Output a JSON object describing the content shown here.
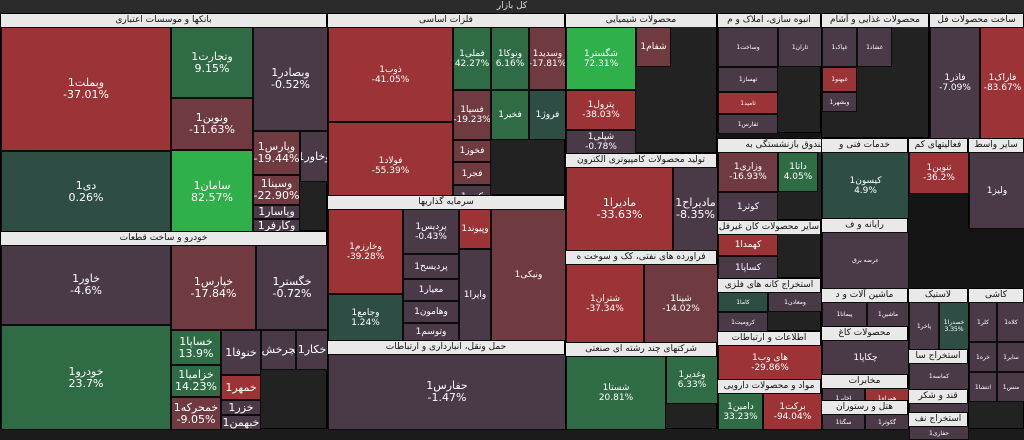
{
  "title": "کل بازار",
  "colors": {
    "r3": "#9b3337",
    "r2": "#6f3a40",
    "r1": "#4a3a48",
    "g1": "#2e4d45",
    "g2": "#2f6b45",
    "g3": "#2fb04a"
  },
  "sections": [
    {
      "name": "بانکها و موسسات اعتباری",
      "cells": [
        {
          "name": "وبملت1",
          "pct": "-37.01%",
          "c": "r3"
        },
        {
          "name": "دی1",
          "pct": "0.26%",
          "c": "g1"
        },
        {
          "name": "وتجارت1",
          "pct": "9.15%",
          "c": "g2"
        },
        {
          "name": "ونوین1",
          "pct": "-11.63%",
          "c": "r2"
        },
        {
          "name": "سامان1",
          "pct": "82.57%",
          "c": "g3"
        },
        {
          "name": "وبصادر1",
          "pct": "-0.52%",
          "c": "r1"
        },
        {
          "name": "وپارس1",
          "pct": "-19.44%",
          "c": "r2"
        },
        {
          "name": "وسینا1",
          "pct": "-22.90%",
          "c": "r2"
        },
        {
          "name": "وپاسار1",
          "pct": "",
          "c": "r1"
        },
        {
          "name": "وکارفر1",
          "pct": "",
          "c": "r1"
        },
        {
          "name": "وخاور1",
          "pct": "",
          "c": "r1"
        }
      ]
    },
    {
      "name": "خودرو و ساخت قطعات",
      "cells": [
        {
          "name": "خاور1",
          "pct": "-4.6%",
          "c": "r1"
        },
        {
          "name": "خودرو1",
          "pct": "23.7%",
          "c": "g2"
        },
        {
          "name": "خپارس1",
          "pct": "-17.84%",
          "c": "r2"
        },
        {
          "name": "خگستر1",
          "pct": "-0.72%",
          "c": "r1"
        },
        {
          "name": "خساپا1",
          "pct": "13.9%",
          "c": "g2"
        },
        {
          "name": "خزامیا1",
          "pct": "14.23%",
          "c": "g2"
        },
        {
          "name": "خمحرکه1",
          "pct": "-9.05%",
          "c": "r2"
        },
        {
          "name": "خنوفا1",
          "pct": "",
          "c": "r1"
        },
        {
          "name": "خمهر1",
          "pct": "",
          "c": "r3"
        },
        {
          "name": "خزر1",
          "pct": "",
          "c": "r1"
        },
        {
          "name": "خبهمن1",
          "pct": "",
          "c": "r1"
        },
        {
          "name": "خکار1",
          "pct": "",
          "c": "r1"
        },
        {
          "name": "خچرخش1",
          "pct": "",
          "c": "r1"
        }
      ]
    },
    {
      "name": "فلزات اساسی",
      "cells": [
        {
          "name": "ذوب1",
          "pct": "-41.05%",
          "c": "r3"
        },
        {
          "name": "فولاد1",
          "pct": "-55.39%",
          "c": "r3"
        },
        {
          "name": "فملی1",
          "pct": "42.27%",
          "c": "g2"
        },
        {
          "name": "ونوکا1",
          "pct": "6.16%",
          "c": "g2"
        },
        {
          "name": "وسدید1",
          "pct": "-17.81%",
          "c": "r2"
        },
        {
          "name": "فسپا1",
          "pct": "-19.23%",
          "c": "r2"
        },
        {
          "name": "فخوز1",
          "pct": "",
          "c": "r2"
        },
        {
          "name": "فجر1",
          "pct": "",
          "c": "r2"
        },
        {
          "name": "کویر1",
          "pct": "",
          "c": "r1"
        },
        {
          "name": "فروژ1",
          "pct": "",
          "c": "g1"
        },
        {
          "name": "فخیر1",
          "pct": "",
          "c": "g2"
        }
      ]
    },
    {
      "name": "سرمایه گذاریها",
      "cells": [
        {
          "name": "وخارزم1",
          "pct": "-39.28%",
          "c": "r3"
        },
        {
          "name": "وجامع1",
          "pct": "1.24%",
          "c": "g1"
        },
        {
          "name": "پردیس1",
          "pct": "-0.43%",
          "c": "r1"
        },
        {
          "name": "پردیسح1",
          "pct": "",
          "c": "r1"
        },
        {
          "name": "معیار1",
          "pct": "",
          "c": "r1"
        },
        {
          "name": "وهامون1",
          "pct": "",
          "c": "r1"
        },
        {
          "name": "وتوسم1",
          "pct": "",
          "c": "r1"
        },
        {
          "name": "وپیوند1",
          "pct": "",
          "c": "r3"
        },
        {
          "name": "واپرا1",
          "pct": "",
          "c": "r1"
        },
        {
          "name": "ونیکی1",
          "pct": "",
          "c": "r2"
        }
      ]
    },
    {
      "name": "حمل ونقل، انبارداری و ارتباطات",
      "cells": [
        {
          "name": "حفارس1",
          "pct": "-1.47%",
          "c": "r1"
        }
      ]
    },
    {
      "name": "محصولات شیمیایی",
      "cells": [
        {
          "name": "شگستر1",
          "pct": "72.31%",
          "c": "g3"
        },
        {
          "name": "پترول1",
          "pct": "-38.03%",
          "c": "r3"
        },
        {
          "name": "شپلی1",
          "pct": "-0.78%",
          "c": "r1"
        },
        {
          "name": "شفام1",
          "pct": "",
          "c": "r2"
        }
      ]
    },
    {
      "name": "تولید محصولات کامپیوتری الکترون",
      "cells": [
        {
          "name": "مادیرا1",
          "pct": "-33.63%",
          "c": "r3"
        },
        {
          "name": "مادیراح1",
          "pct": "-8.35%",
          "c": "r1"
        }
      ]
    },
    {
      "name": "فراورده های نفتی، کک و سوخت ه",
      "cells": [
        {
          "name": "شتران1",
          "pct": "-37.34%",
          "c": "r3"
        },
        {
          "name": "شپنا1",
          "pct": "-14.02%",
          "c": "r2"
        }
      ]
    },
    {
      "name": "شرکتهای چند رشته ای صنعتی",
      "cells": [
        {
          "name": "شستا1",
          "pct": "20.81%",
          "c": "g2"
        },
        {
          "name": "وغدیر1",
          "pct": "6.33%",
          "c": "g2"
        }
      ]
    },
    {
      "name": "انبوه سازی، املاک و م",
      "cells": [
        {
          "name": "وساخت1",
          "pct": "",
          "c": "r1"
        },
        {
          "name": "ثاران1",
          "pct": "",
          "c": "r1"
        },
        {
          "name": "ثهساز1",
          "pct": "",
          "c": "r1"
        },
        {
          "name": "ثامید1",
          "pct": "",
          "c": "r3"
        },
        {
          "name": "ثفارس1",
          "pct": "",
          "c": "r1"
        }
      ]
    },
    {
      "name": "محصولات غذایی و آشام",
      "cells": [
        {
          "name": "غپاک1",
          "pct": "",
          "c": "r1"
        },
        {
          "name": "غشاد1",
          "pct": "",
          "c": "r1"
        },
        {
          "name": "غبهنو1",
          "pct": "",
          "c": "r3"
        },
        {
          "name": "وبشهر1",
          "pct": "",
          "c": "r1"
        }
      ]
    },
    {
      "name": "ساخت محصولات فل",
      "cells": [
        {
          "name": "فاذر1",
          "pct": "-7.09%",
          "c": "r1"
        },
        {
          "name": "فاراک1",
          "pct": "-83.67%",
          "c": "r3"
        }
      ]
    },
    {
      "name": "بیمه وصندوق بازنشستگی به",
      "cells": [
        {
          "name": "وزاری1",
          "pct": "-16.93%",
          "c": "r2"
        },
        {
          "name": "داتا1",
          "pct": "4.05%",
          "c": "g2"
        },
        {
          "name": "کوثر1",
          "pct": "",
          "c": "r1"
        }
      ]
    },
    {
      "name": "خدمات فنی و",
      "cells": [
        {
          "name": "کیسون1",
          "pct": "4.9%",
          "c": "g1"
        }
      ]
    },
    {
      "name": "فعالیتهای کم",
      "cells": [
        {
          "name": "تنوین1",
          "pct": "-36.2%",
          "c": "r3"
        }
      ]
    },
    {
      "name": "سایر واسط",
      "cells": [
        {
          "name": "ولیز1",
          "pct": "",
          "c": "r1"
        }
      ]
    },
    {
      "name": "سایر محصولات کان غیرفل",
      "cells": [
        {
          "name": "کهمدا1",
          "pct": "",
          "c": "r3"
        },
        {
          "name": "کساپا1",
          "pct": "",
          "c": "r1"
        }
      ]
    },
    {
      "name": "استخراج کانه های فلزی",
      "cells": [
        {
          "name": "کاما1",
          "pct": "",
          "c": "g1"
        },
        {
          "name": "ومعادن1",
          "pct": "",
          "c": "r1"
        },
        {
          "name": "کرومیت1",
          "pct": "",
          "c": "r1"
        },
        {
          "name": "کجل1",
          "pct": "",
          "c": "g2"
        }
      ]
    },
    {
      "name": "اطلاعات و ارتباطات",
      "cells": [
        {
          "name": "های وب1",
          "pct": "-29.86%",
          "c": "r3"
        }
      ]
    },
    {
      "name": "مواد و محصولات دارویی",
      "cells": [
        {
          "name": "دامین1",
          "pct": "33.23%",
          "c": "g2"
        },
        {
          "name": "برکت1",
          "pct": "-94.04%",
          "c": "r3"
        }
      ]
    },
    {
      "name": "ماشین آلات و د",
      "cells": [
        {
          "name": "پیمانا1",
          "pct": "",
          "c": "r1"
        },
        {
          "name": "ماشین1",
          "pct": "",
          "c": "r1"
        }
      ]
    },
    {
      "name": "محصولات کاغ",
      "cells": [
        {
          "name": "چکاپا1",
          "pct": "",
          "c": "r1"
        }
      ]
    },
    {
      "name": "مخابرات",
      "cells": [
        {
          "name": "اخابر1",
          "pct": "",
          "c": "r1"
        },
        {
          "name": "همراه1",
          "pct": "",
          "c": "r3"
        }
      ]
    },
    {
      "name": "هتل و رستوران",
      "cells": [
        {
          "name": "سگتا1",
          "pct": "",
          "c": "r1"
        },
        {
          "name": "گکوثر1",
          "pct": "",
          "c": "r1"
        }
      ]
    },
    {
      "name": "لاستیک",
      "cells": [
        {
          "name": "پاخر1",
          "pct": "",
          "c": "r1"
        },
        {
          "name": "خصدرا1",
          "pct": "3.35%",
          "c": "g1"
        }
      ]
    },
    {
      "name": "استخراج سا",
      "cells": [
        {
          "name": "کماسه1",
          "pct": "",
          "c": "r1"
        }
      ]
    },
    {
      "name": "قند و شکر",
      "cells": [
        {
          "name": "قثابت1",
          "pct": "",
          "c": "r1"
        }
      ]
    },
    {
      "name": "استخراج نف",
      "cells": [
        {
          "name": "حفاری1",
          "pct": "",
          "c": "r1"
        }
      ]
    },
    {
      "name": "کاشی",
      "cells": [
        {
          "name": "کلر1",
          "pct": "",
          "c": "r1"
        },
        {
          "name": "کلاه1",
          "pct": "",
          "c": "r1"
        },
        {
          "name": "خره1",
          "pct": "",
          "c": "r1"
        },
        {
          "name": "سایر1",
          "pct": "",
          "c": "r1"
        },
        {
          "name": "انتشا1",
          "pct": "",
          "c": "r1"
        },
        {
          "name": "منس1",
          "pct": "",
          "c": "r1"
        }
      ]
    },
    {
      "name": "رایانه و ف",
      "cells": [
        {
          "name": "عرضه برق",
          "pct": "",
          "c": "r1"
        }
      ]
    }
  ]
}
